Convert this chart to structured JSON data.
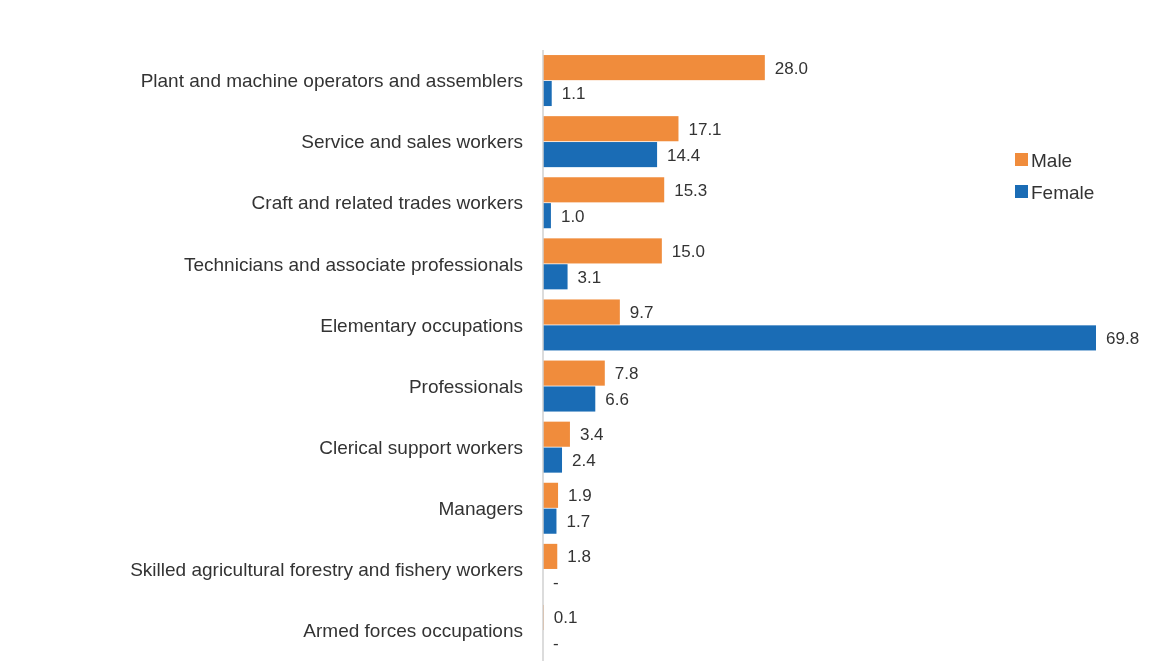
{
  "chart_data": {
    "type": "bar",
    "orientation": "horizontal",
    "legend": "right",
    "data_labels": true,
    "categories": [
      "Plant and machine operators and assemblers",
      "Service and sales workers",
      "Craft and related trades workers",
      "Technicians and associate professionals",
      "Elementary occupations",
      "Professionals",
      "Clerical support workers",
      "Managers",
      "Skilled agricultural forestry and fishery workers",
      "Armed forces occupations"
    ],
    "series": [
      {
        "name": "Male",
        "color": "#f08c3c",
        "values": [
          28.0,
          17.1,
          15.3,
          15.0,
          9.7,
          7.8,
          3.4,
          1.9,
          1.8,
          0.1
        ],
        "value_labels": [
          "28.0",
          "17.1",
          "15.3",
          "15.0",
          "9.7",
          "7.8",
          "3.4",
          "1.9",
          "1.8",
          "0.1"
        ]
      },
      {
        "name": "Female",
        "color": "#1a6cb5",
        "values": [
          1.1,
          14.4,
          1.0,
          3.1,
          69.8,
          6.6,
          2.4,
          1.7,
          null,
          null
        ],
        "value_labels": [
          "1.1",
          "14.4",
          "1.0",
          "3.1",
          "69.8",
          "6.6",
          "2.4",
          "1.7",
          "-",
          "-"
        ]
      }
    ]
  }
}
